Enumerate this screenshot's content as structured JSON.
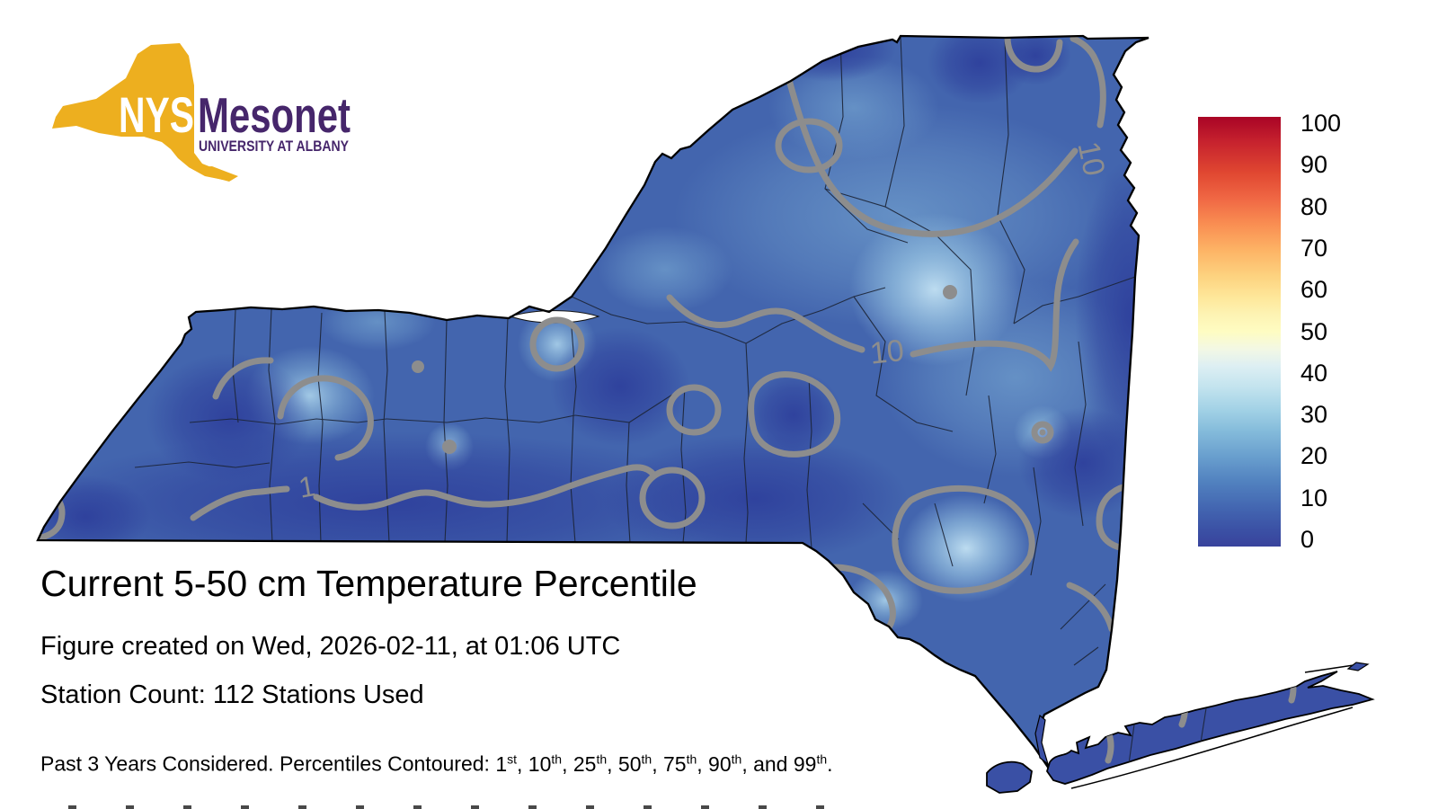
{
  "logo": {
    "nys": "NYS",
    "mesonet": "Mesonet",
    "tagline": "UNIVERSITY AT ALBANY",
    "gold": "#edaf1f",
    "purple": "#46266b"
  },
  "title": "Current 5-50 cm Temperature Percentile",
  "created_line": "Figure created on Wed, 2026-02-11, at 01:06 UTC",
  "station_line": "Station Count: 112 Stations Used",
  "footnote": {
    "prefix": "Past 3 Years Considered. Percentiles Contoured: ",
    "ordinals": [
      {
        "pre": "",
        "num": "1",
        "suf": "st"
      },
      {
        "pre": ", ",
        "num": "10",
        "suf": "th"
      },
      {
        "pre": ", ",
        "num": "25",
        "suf": "th"
      },
      {
        "pre": ", ",
        "num": "50",
        "suf": "th"
      },
      {
        "pre": ", ",
        "num": "75",
        "suf": "th"
      },
      {
        "pre": ", ",
        "num": "90",
        "suf": "th"
      },
      {
        "pre": ", and ",
        "num": "99",
        "suf": "th"
      }
    ],
    "end": "."
  },
  "colorbar": {
    "ticks": [
      100,
      90,
      80,
      70,
      60,
      50,
      40,
      30,
      20,
      10,
      0
    ],
    "colors_top_to_bottom": [
      "#a50026",
      "#d73027",
      "#f46d43",
      "#fdae61",
      "#fee090",
      "#ffffbf",
      "#e0f3f8",
      "#abd9e9",
      "#74add1",
      "#4575b4",
      "#313695"
    ]
  },
  "map": {
    "region": "New York State",
    "contour_labels": [
      {
        "text": "1"
      },
      {
        "text": "10"
      },
      {
        "text": "10"
      }
    ]
  },
  "chart_data": {
    "type": "heatmap",
    "title": "Current 5-50 cm Temperature Percentile",
    "region": "New York State",
    "legend_range": [
      0,
      100
    ],
    "legend_ticks": [
      0,
      10,
      20,
      30,
      40,
      50,
      60,
      70,
      80,
      90,
      100
    ],
    "contour_labels_visible": [
      1,
      10
    ],
    "value_summary": "Entire state shaded in blues (roughly 0-40th percentile); most areas below the 10th percentile, small lighter pockets near 30-40"
  }
}
